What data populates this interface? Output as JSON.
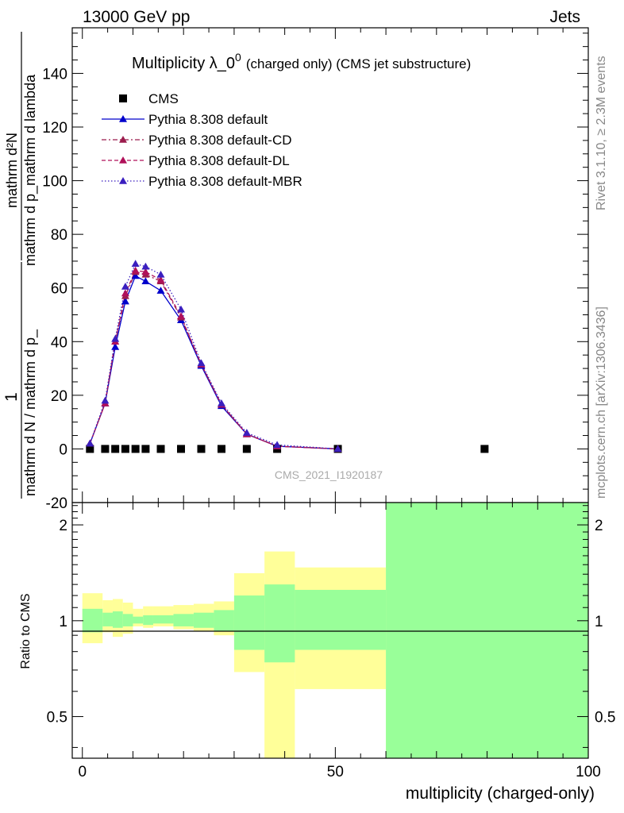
{
  "header": {
    "left": "13000 GeV pp",
    "right": "Jets"
  },
  "side_labels": {
    "rivet": "Rivet 3.1.10, ≥ 2.3M events",
    "mcplots": "mcplots.cern.ch [arXiv:1306.3436]"
  },
  "chart_data": [
    {
      "type": "line",
      "title_main": "Multiplicity λ_0",
      "title_sup": "0",
      "title_suffix": "(charged only) (CMS jet substructure)",
      "ylabel_num": "mathrm d²N",
      "ylabel_sup": "2",
      "ylabel_den": "mathrm d p_mathrm d lambda",
      "ylabel_prefix_num": "1",
      "ylabel_prefix_den": "mathrm d N / mathrm d p_",
      "watermark": "CMS_2021_I1920187",
      "xlim": [
        -2,
        100
      ],
      "ylim": [
        -20,
        157
      ],
      "yticks": [
        -20,
        0,
        20,
        40,
        60,
        80,
        100,
        120,
        140
      ],
      "legend_position": "top-left",
      "series": [
        {
          "name": "CMS",
          "color": "#000000",
          "marker": "square",
          "x": [
            1.5,
            4.5,
            6.5,
            8.5,
            10.5,
            12.5,
            15.5,
            19.5,
            23.5,
            27.5,
            32.5,
            38.5,
            50.5,
            79.5
          ],
          "y": [
            0,
            0,
            0,
            0,
            0,
            0,
            0,
            0,
            0,
            0,
            0,
            0,
            0,
            0
          ]
        },
        {
          "name": "Pythia 8.308 default",
          "color": "#0000cc",
          "marker": "triangle",
          "dash": "solid",
          "x": [
            1.5,
            4.5,
            6.5,
            8.5,
            10.5,
            12.5,
            15.5,
            19.5,
            23.5,
            27.5,
            32.5,
            38.5,
            50.5
          ],
          "y": [
            2,
            17,
            38,
            55,
            64.5,
            62.5,
            59,
            48,
            31,
            16,
            5.5,
            1,
            0
          ]
        },
        {
          "name": "Pythia 8.308 default-CD",
          "color": "#9b1c4d",
          "marker": "triangle",
          "dash": "dashdot",
          "x": [
            1.5,
            4.5,
            6.5,
            8.5,
            10.5,
            12.5,
            15.5,
            19.5,
            23.5,
            27.5,
            32.5,
            38.5,
            50.5
          ],
          "y": [
            2,
            17,
            40,
            57,
            66,
            65,
            62.5,
            49,
            31.5,
            16.5,
            5.5,
            1,
            0
          ]
        },
        {
          "name": "Pythia 8.308 default-DL",
          "color": "#b0105a",
          "marker": "triangle",
          "dash": "dashed",
          "x": [
            1.5,
            4.5,
            6.5,
            8.5,
            10.5,
            12.5,
            15.5,
            19.5,
            23.5,
            27.5,
            32.5,
            38.5,
            50.5
          ],
          "y": [
            2,
            17,
            40,
            58,
            66.5,
            66,
            63,
            49.5,
            31.5,
            16.5,
            5.5,
            1,
            0
          ]
        },
        {
          "name": "Pythia 8.308 default-MBR",
          "color": "#3a1fbf",
          "marker": "triangle",
          "dash": "dotted",
          "x": [
            1.5,
            4.5,
            6.5,
            8.5,
            10.5,
            12.5,
            15.5,
            19.5,
            23.5,
            27.5,
            32.5,
            38.5,
            50.5
          ],
          "y": [
            2,
            18,
            41,
            60.5,
            69,
            68,
            65,
            52,
            32,
            17,
            6,
            1.5,
            0
          ]
        }
      ]
    },
    {
      "type": "area",
      "ylabel": "Ratio to CMS",
      "xlabel": "multiplicity (charged-only)",
      "xlim": [
        -2,
        100
      ],
      "ylim": [
        0.37,
        2.35
      ],
      "ylog": true,
      "yticks": [
        0.5,
        1,
        2
      ],
      "xticks": [
        0,
        50,
        100
      ],
      "bands": {
        "edges": [
          0,
          4,
          6,
          8,
          10,
          12,
          14,
          18,
          22,
          26,
          30,
          36,
          42,
          60,
          100
        ],
        "yellow_low": [
          0.85,
          0.92,
          0.89,
          0.91,
          0.96,
          0.95,
          0.96,
          0.94,
          0.93,
          0.9,
          0.69,
          0.3,
          0.61,
          0.3
        ],
        "yellow_high": [
          1.22,
          1.16,
          1.17,
          1.14,
          1.09,
          1.11,
          1.11,
          1.12,
          1.13,
          1.15,
          1.41,
          1.65,
          1.47,
          3.0
        ],
        "green_low": [
          0.92,
          0.96,
          0.95,
          0.96,
          0.98,
          0.97,
          0.98,
          0.96,
          0.95,
          0.93,
          0.81,
          0.74,
          0.81,
          0.3
        ],
        "green_high": [
          1.09,
          1.06,
          1.07,
          1.05,
          1.03,
          1.04,
          1.04,
          1.05,
          1.06,
          1.08,
          1.2,
          1.3,
          1.25,
          3.0
        ]
      }
    }
  ]
}
